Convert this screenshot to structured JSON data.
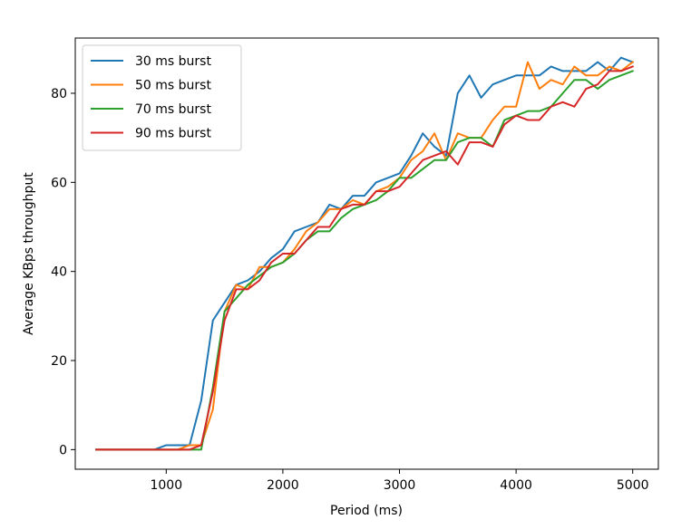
{
  "chart_data": {
    "type": "line",
    "title": "",
    "xlabel": "Period (ms)",
    "ylabel": "Average KBps throughput",
    "xlim": [
      220,
      5220
    ],
    "ylim": [
      -4.4,
      92.4
    ],
    "xticks": [
      1000,
      2000,
      3000,
      4000,
      5000
    ],
    "yticks": [
      0,
      20,
      40,
      60,
      80
    ],
    "grid": false,
    "legend_position": "top-left",
    "x": [
      400,
      500,
      600,
      700,
      800,
      900,
      1000,
      1100,
      1200,
      1300,
      1400,
      1500,
      1600,
      1700,
      1800,
      1900,
      2000,
      2100,
      2200,
      2300,
      2400,
      2500,
      2600,
      2700,
      2800,
      2900,
      3000,
      3100,
      3200,
      3300,
      3400,
      3500,
      3600,
      3700,
      3800,
      3900,
      4000,
      4100,
      4200,
      4300,
      4400,
      4500,
      4600,
      4700,
      4800,
      4900,
      5000
    ],
    "series": [
      {
        "name": "30 ms burst",
        "color": "#1f77b4",
        "values": [
          0,
          0,
          0,
          0,
          0,
          0,
          1,
          1,
          1,
          11,
          29,
          33,
          37,
          38,
          40,
          43,
          45,
          49,
          50,
          51,
          55,
          54,
          57,
          57,
          60,
          61,
          62,
          66,
          71,
          68,
          66,
          80,
          84,
          79,
          82,
          83,
          84,
          84,
          84,
          86,
          85,
          85,
          85,
          87,
          85,
          88,
          87
        ]
      },
      {
        "name": "50 ms burst",
        "color": "#ff7f0e",
        "values": [
          0,
          0,
          0,
          0,
          0,
          0,
          0,
          0,
          1,
          1,
          9,
          31,
          37,
          36,
          41,
          41,
          42,
          45,
          49,
          51,
          54,
          54,
          56,
          55,
          58,
          59,
          61,
          65,
          67,
          71,
          65,
          71,
          70,
          70,
          74,
          77,
          77,
          87,
          81,
          83,
          82,
          86,
          84,
          84,
          86,
          85,
          87
        ]
      },
      {
        "name": "70 ms burst",
        "color": "#2ca02c",
        "values": [
          0,
          0,
          0,
          0,
          0,
          0,
          0,
          0,
          0,
          0,
          14,
          31,
          34,
          37,
          39,
          41,
          42,
          44,
          47,
          49,
          49,
          52,
          54,
          55,
          56,
          58,
          61,
          61,
          63,
          65,
          65,
          69,
          70,
          70,
          68,
          74,
          75,
          76,
          76,
          77,
          80,
          83,
          83,
          81,
          83,
          84,
          85
        ]
      },
      {
        "name": "90 ms burst",
        "color": "#d62728",
        "values": [
          0,
          0,
          0,
          0,
          0,
          0,
          0,
          0,
          0,
          1,
          13,
          29,
          36,
          36,
          38,
          42,
          44,
          44,
          47,
          50,
          50,
          54,
          55,
          55,
          58,
          58,
          59,
          62,
          65,
          66,
          67,
          64,
          69,
          69,
          68,
          73,
          75,
          74,
          74,
          77,
          78,
          77,
          81,
          82,
          85,
          85,
          86
        ]
      }
    ]
  }
}
